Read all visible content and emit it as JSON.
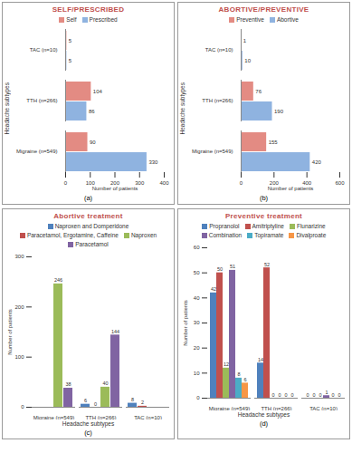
{
  "chart_data": [
    {
      "type": "bar",
      "orientation": "horizontal",
      "title": "SELF/PRESCRIBED",
      "caption": "(a)",
      "categories": [
        "TAC (n=10)",
        "TTH (n=266)",
        "Migraine (n=549)"
      ],
      "series": [
        {
          "name": "Self",
          "color": "#e38b83",
          "values": [
            5,
            104,
            90
          ]
        },
        {
          "name": "Prescribed",
          "color": "#8fb3e0",
          "values": [
            5,
            86,
            330
          ]
        }
      ],
      "xlim": [
        0,
        400
      ],
      "xticks": [
        0,
        100,
        200,
        300,
        400
      ],
      "xlabel": "Number of patients",
      "ylabel": "Headache subtypes",
      "data_labels": true,
      "legend": "top"
    },
    {
      "type": "bar",
      "orientation": "horizontal",
      "title": "ABORTIVE/PREVENTIVE",
      "caption": "(b)",
      "categories": [
        "TAC (n=10)",
        "TTH (n=266)",
        "Migraine (n=549)"
      ],
      "series": [
        {
          "name": "Preventive",
          "color": "#e38b83",
          "values": [
            1,
            76,
            155
          ]
        },
        {
          "name": "Abortive",
          "color": "#8fb3e0",
          "values": [
            10,
            190,
            420
          ]
        }
      ],
      "xlim": [
        0,
        600
      ],
      "xticks": [
        0,
        200,
        400,
        600
      ],
      "xlabel": "Number of patients",
      "ylabel": "Headache subtypes",
      "data_labels": true,
      "legend": "top"
    },
    {
      "type": "bar",
      "title": "Abortive treatment",
      "caption": "(c)",
      "categories": [
        "Migraine (n=549)",
        "TTH (n=266)",
        "TAC (n=10)"
      ],
      "series": [
        {
          "name": "Naproxen and Domperidone",
          "color": "#4f81bd",
          "values": [
            null,
            6,
            8
          ]
        },
        {
          "name": "Paracetamol, Ergotamine, Caffeine",
          "color": "#c0504d",
          "values": [
            null,
            0,
            2
          ]
        },
        {
          "name": "Naproxen",
          "color": "#9bbb59",
          "values": [
            246,
            40,
            null
          ]
        },
        {
          "name": "Paracetamol",
          "color": "#8064a2",
          "values": [
            38,
            144,
            null
          ]
        }
      ],
      "ylim": [
        0,
        300
      ],
      "yticks": [
        0,
        100,
        200,
        300
      ],
      "xlabel": "Headache subtypes",
      "ylabel": "Number of patients",
      "data_labels": true,
      "legend": "top"
    },
    {
      "type": "bar",
      "title": "Preventive treatment",
      "caption": "(d)",
      "categories": [
        "Migraine (n=549)",
        "TTH (n=266)",
        "TAC (n=10)"
      ],
      "series": [
        {
          "name": "Propranolol",
          "color": "#4f81bd",
          "values": [
            42,
            14,
            0
          ]
        },
        {
          "name": "Amitriptyline",
          "color": "#c0504d",
          "values": [
            50,
            52,
            0
          ]
        },
        {
          "name": "Flunarizine",
          "color": "#9bbb59",
          "values": [
            12,
            0,
            0
          ]
        },
        {
          "name": "Combination",
          "color": "#8064a2",
          "values": [
            51,
            0,
            1
          ]
        },
        {
          "name": "Topiramate",
          "color": "#4bacc6",
          "values": [
            8,
            0,
            0
          ]
        },
        {
          "name": "Divalproate",
          "color": "#f79646",
          "values": [
            6,
            0,
            0
          ]
        }
      ],
      "ylim": [
        0,
        60
      ],
      "yticks": [
        0,
        10,
        20,
        30,
        40,
        50,
        60
      ],
      "xlabel": "Headache subtypes",
      "ylabel": "Number of patients",
      "data_labels": true,
      "legend": "top"
    }
  ]
}
